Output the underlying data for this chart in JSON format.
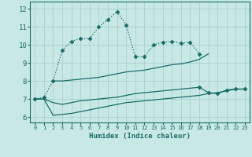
{
  "xlabel": "Humidex (Indice chaleur)",
  "xlim": [
    -0.5,
    23.5
  ],
  "ylim": [
    5.7,
    12.4
  ],
  "xticks": [
    0,
    1,
    2,
    3,
    4,
    5,
    6,
    7,
    8,
    9,
    10,
    11,
    12,
    13,
    14,
    15,
    16,
    17,
    18,
    19,
    20,
    21,
    22,
    23
  ],
  "yticks": [
    6,
    7,
    8,
    9,
    10,
    11,
    12
  ],
  "bg_color": "#c8e8e5",
  "grid_color": "#a0ccca",
  "line_color": "#1a6b65",
  "curve1_x": [
    0,
    1,
    2,
    3,
    4,
    5,
    6,
    7,
    8,
    9,
    10,
    11,
    12,
    13,
    14,
    15,
    16,
    17,
    18
  ],
  "curve1_y": [
    7.0,
    7.1,
    8.0,
    9.7,
    10.2,
    10.35,
    10.35,
    11.0,
    11.4,
    11.85,
    11.1,
    9.35,
    9.35,
    10.0,
    10.15,
    10.2,
    10.1,
    10.15,
    9.5
  ],
  "upper_x": [
    2,
    3,
    4,
    5,
    6,
    7,
    8,
    9,
    10,
    11,
    12,
    13,
    14,
    15,
    16,
    17,
    18,
    19
  ],
  "upper_y": [
    8.0,
    8.0,
    8.05,
    8.1,
    8.15,
    8.2,
    8.3,
    8.4,
    8.5,
    8.55,
    8.6,
    8.7,
    8.8,
    8.9,
    8.95,
    9.05,
    9.2,
    9.5
  ],
  "mid_x": [
    0,
    1,
    2,
    3,
    4,
    5,
    6,
    7,
    8,
    9,
    10,
    11,
    12,
    13,
    14,
    15,
    16,
    17,
    18,
    19,
    20,
    21,
    22,
    23
  ],
  "mid_y": [
    7.0,
    7.0,
    6.8,
    6.7,
    6.8,
    6.9,
    6.95,
    7.0,
    7.05,
    7.1,
    7.2,
    7.3,
    7.35,
    7.4,
    7.45,
    7.5,
    7.55,
    7.6,
    7.65,
    7.35,
    7.3,
    7.5,
    7.55,
    7.55
  ],
  "lower_x": [
    0,
    1,
    2,
    3,
    4,
    5,
    6,
    7,
    8,
    9,
    10,
    11,
    12,
    13,
    14,
    15,
    16,
    17,
    18,
    19,
    20,
    21,
    22,
    23
  ],
  "lower_y": [
    7.0,
    7.0,
    6.1,
    6.15,
    6.2,
    6.3,
    6.4,
    6.5,
    6.6,
    6.7,
    6.8,
    6.85,
    6.9,
    6.95,
    7.0,
    7.05,
    7.1,
    7.15,
    7.2,
    7.3,
    7.35,
    7.45,
    7.55,
    7.55
  ]
}
